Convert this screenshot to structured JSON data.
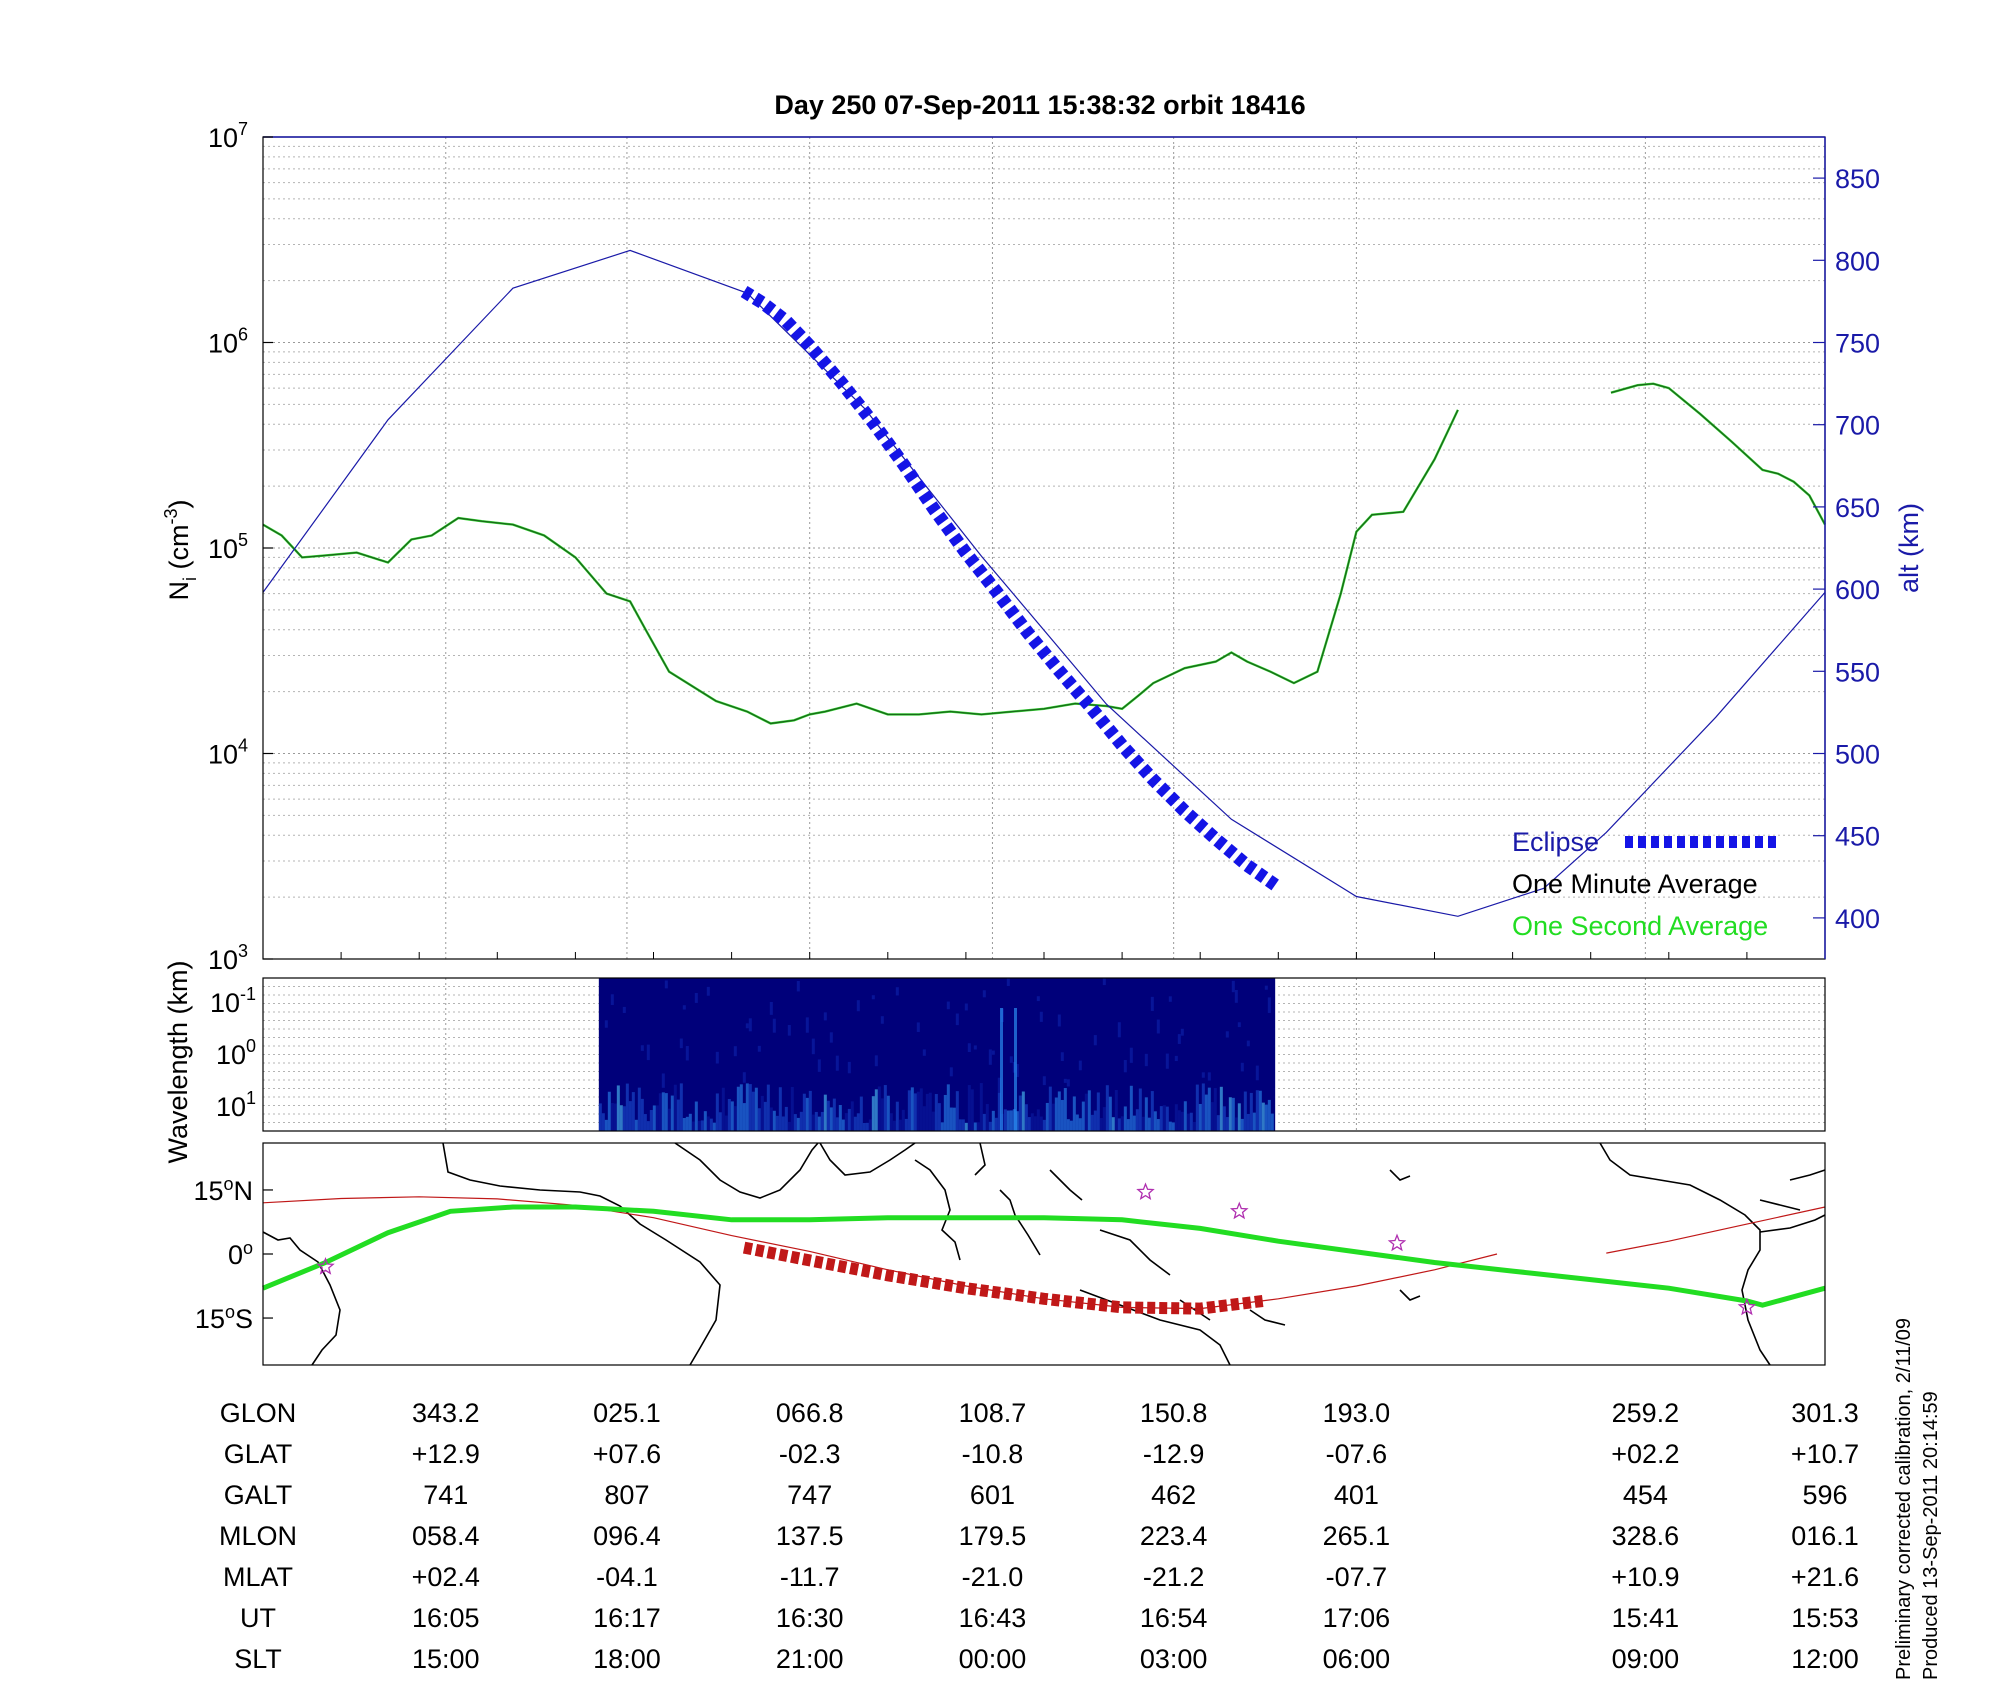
{
  "title": "Day 250  07-Sep-2011 15:38:32   orbit 18416",
  "side_notes": [
    "Preliminary corrected calibration, 2/11/09",
    "Produced 13-Sep-2011 20:14:59"
  ],
  "colors": {
    "axis_blue": "#1a1aa8",
    "altitude": "#1a1aa8",
    "eclipse": "#1414e6",
    "one_minute": "#1a6a1a",
    "one_second": "#22dd22",
    "track_red": "#c01818",
    "track_green": "#22dd22",
    "star": "#b030b0",
    "coast": "#000000"
  },
  "chart_data": [
    {
      "type": "line",
      "panel": "density",
      "ylabel": "N",
      "ylabel_sub": "i",
      "ylabel_unit": " (cm",
      "ylabel_exp": "-3",
      "ylabel_close": ")",
      "yscale": "log",
      "ylim": [
        1000,
        10000000
      ],
      "yticks": [
        {
          "base": "10",
          "exp": "3",
          "value": 1000
        },
        {
          "base": "10",
          "exp": "4",
          "value": 10000
        },
        {
          "base": "10",
          "exp": "5",
          "value": 100000
        },
        {
          "base": "10",
          "exp": "6",
          "value": 1000000
        },
        {
          "base": "10",
          "exp": "7",
          "value": 10000000
        }
      ],
      "xlim": [
        0,
        1
      ],
      "right_axis": {
        "label": "alt (km)",
        "ylim": [
          375,
          875
        ],
        "ticks": [
          "400",
          "450",
          "500",
          "550",
          "600",
          "650",
          "700",
          "750",
          "800",
          "850"
        ]
      },
      "legend": {
        "position": "bottom-right",
        "entries": [
          "Eclipse",
          "One Minute Average",
          "One Second Average"
        ]
      },
      "series": [
        {
          "name": "One Minute Average",
          "axis": "left",
          "x": [
            0.0,
            0.012,
            0.025,
            0.04,
            0.06,
            0.08,
            0.095,
            0.108,
            0.125,
            0.14,
            0.16,
            0.18,
            0.2,
            0.22,
            0.235,
            0.245,
            0.26,
            0.29,
            0.31,
            0.325,
            0.34,
            0.35,
            0.36,
            0.38,
            0.4,
            0.42,
            0.44,
            0.46,
            0.48,
            0.5,
            0.52,
            0.54,
            0.55,
            0.56,
            0.57,
            0.59,
            0.61,
            0.62,
            0.63,
            0.645,
            0.66,
            0.675,
            0.69,
            0.7,
            0.71,
            0.73,
            0.75,
            0.76,
            0.765
          ],
          "y": [
            130000,
            115000,
            90000,
            92000,
            95000,
            85000,
            110000,
            115000,
            140000,
            135000,
            130000,
            115000,
            90000,
            60000,
            55000,
            40000,
            25000,
            18000,
            16000,
            14000,
            14500,
            15500,
            16000,
            17500,
            15500,
            15500,
            16000,
            15500,
            16000,
            16500,
            17500,
            17000,
            16500,
            19000,
            22000,
            26000,
            28000,
            31000,
            28000,
            25000,
            22000,
            25000,
            60000,
            120000,
            145000,
            150000,
            270000,
            390000,
            470000
          ]
        },
        {
          "name": "One Minute Average",
          "axis": "left",
          "x": [
            0.863,
            0.88,
            0.89,
            0.9,
            0.92,
            0.94,
            0.96,
            0.97,
            0.98,
            0.99,
            1.0
          ],
          "y": [
            570000,
            620000,
            630000,
            600000,
            450000,
            330000,
            240000,
            230000,
            210000,
            180000,
            130000
          ]
        },
        {
          "name": "Altitude",
          "axis": "right",
          "x": [
            0.0,
            0.08,
            0.16,
            0.235,
            0.31,
            0.385,
            0.46,
            0.54,
            0.62,
            0.7,
            0.765,
            0.82,
            0.86,
            0.93,
            1.0
          ],
          "y": [
            598,
            703,
            783,
            806,
            780,
            710,
            620,
            530,
            460,
            413,
            401,
            418,
            452,
            522,
            598
          ]
        },
        {
          "name": "Eclipse",
          "axis": "right",
          "x": [
            0.308,
            0.32,
            0.335,
            0.35,
            0.37,
            0.39,
            0.41,
            0.43,
            0.45,
            0.47,
            0.49,
            0.51,
            0.53,
            0.55,
            0.57,
            0.59,
            0.61,
            0.63,
            0.648
          ],
          "y": [
            781,
            774,
            763,
            748,
            726,
            702,
            676,
            648,
            622,
            598,
            573,
            550,
            528,
            505,
            484,
            465,
            448,
            432,
            420
          ]
        }
      ]
    },
    {
      "type": "heatmap",
      "panel": "spectrogram",
      "ylabel": "Wavelength (km)",
      "yticks": [
        {
          "base": "10",
          "exp": "-1"
        },
        {
          "base": "10",
          "exp": "0"
        },
        {
          "base": "10",
          "exp": "1"
        }
      ],
      "x_extent": [
        0.215,
        0.648
      ],
      "colors": [
        "#00007a",
        "#0a1aa0",
        "#1b4fd0",
        "#2a8af0",
        "#4ec8f8"
      ]
    },
    {
      "type": "map",
      "panel": "ground_track",
      "ylabel": "",
      "yticks": [
        {
          "num": "15",
          "deg": "o",
          "hemi": "N",
          "lat": 15
        },
        {
          "num": "0",
          "deg": "o",
          "hemi": "",
          "lat": 0
        },
        {
          "num": "15",
          "deg": "o",
          "hemi": "S",
          "lat": -15
        }
      ],
      "ylim": [
        -26,
        26
      ],
      "satellite_track": {
        "x": [
          0.0,
          0.05,
          0.1,
          0.15,
          0.2,
          0.25,
          0.3,
          0.35,
          0.4,
          0.45,
          0.5,
          0.55,
          0.6,
          0.65,
          0.7,
          0.75,
          0.79
        ],
        "lat": [
          12.0,
          13.0,
          13.4,
          12.9,
          11.4,
          8.5,
          4.3,
          0.6,
          -3.7,
          -7.5,
          -10.5,
          -12.5,
          -12.8,
          -10.5,
          -7.5,
          -3.7,
          0.0
        ]
      },
      "satellite_track_2": {
        "x": [
          0.86,
          0.9,
          0.95,
          1.0
        ],
        "lat": [
          0.2,
          3.0,
          7.0,
          11.0
        ]
      },
      "eclipse_track": {
        "x": [
          0.308,
          0.35,
          0.4,
          0.45,
          0.5,
          0.55,
          0.6,
          0.64
        ],
        "lat": [
          1.5,
          -1.5,
          -5.0,
          -8.0,
          -10.5,
          -12.5,
          -12.8,
          -11.0
        ]
      },
      "magnetic_equator": {
        "x": [
          0.0,
          0.04,
          0.08,
          0.12,
          0.16,
          0.2,
          0.25,
          0.3,
          0.35,
          0.4,
          0.45,
          0.5,
          0.55,
          0.6,
          0.65,
          0.7,
          0.75,
          0.8,
          0.85,
          0.9,
          0.95,
          0.96,
          0.98,
          1.0
        ],
        "lat": [
          -8.0,
          -2.0,
          5.0,
          10.0,
          11.0,
          11.0,
          10.0,
          8.0,
          8.0,
          8.5,
          8.5,
          8.5,
          8.0,
          6.0,
          3.0,
          0.5,
          -2.0,
          -4.0,
          -6.0,
          -8.0,
          -11.0,
          -12.0,
          -10.0,
          -8.0
        ]
      },
      "stars": [
        {
          "x": 0.04,
          "lat": -3.0
        },
        {
          "x": 0.565,
          "lat": 14.5
        },
        {
          "x": 0.625,
          "lat": 10.0
        },
        {
          "x": 0.726,
          "lat": 2.5
        },
        {
          "x": 0.95,
          "lat": -12.5
        }
      ]
    }
  ],
  "orbit_table": {
    "row_labels": [
      "GLON",
      "GLAT",
      "GALT",
      "MLON",
      "MLAT",
      "UT",
      "SLT"
    ],
    "columns": [
      {
        "x": 0.117,
        "values": [
          "343.2",
          "+12.9",
          "741",
          "058.4",
          "+02.4",
          "16:05",
          "15:00"
        ]
      },
      {
        "x": 0.233,
        "values": [
          "025.1",
          "+07.6",
          "807",
          "096.4",
          "-04.1",
          "16:17",
          "18:00"
        ]
      },
      {
        "x": 0.35,
        "values": [
          "066.8",
          "-02.3",
          "747",
          "137.5",
          "-11.7",
          "16:30",
          "21:00"
        ]
      },
      {
        "x": 0.467,
        "values": [
          "108.7",
          "-10.8",
          "601",
          "179.5",
          "-21.0",
          "16:43",
          "00:00"
        ]
      },
      {
        "x": 0.583,
        "values": [
          "150.8",
          "-12.9",
          "462",
          "223.4",
          "-21.2",
          "16:54",
          "03:00"
        ]
      },
      {
        "x": 0.7,
        "values": [
          "193.0",
          "-07.6",
          "401",
          "265.1",
          "-07.7",
          "17:06",
          "06:00"
        ]
      },
      {
        "x": 0.885,
        "values": [
          "259.2",
          "+02.2",
          "454",
          "328.6",
          "+10.9",
          "15:41",
          "09:00"
        ]
      },
      {
        "x": 1.0,
        "values": [
          "301.3",
          "+10.7",
          "596",
          "016.1",
          "+21.6",
          "15:53",
          "12:00"
        ]
      }
    ]
  }
}
